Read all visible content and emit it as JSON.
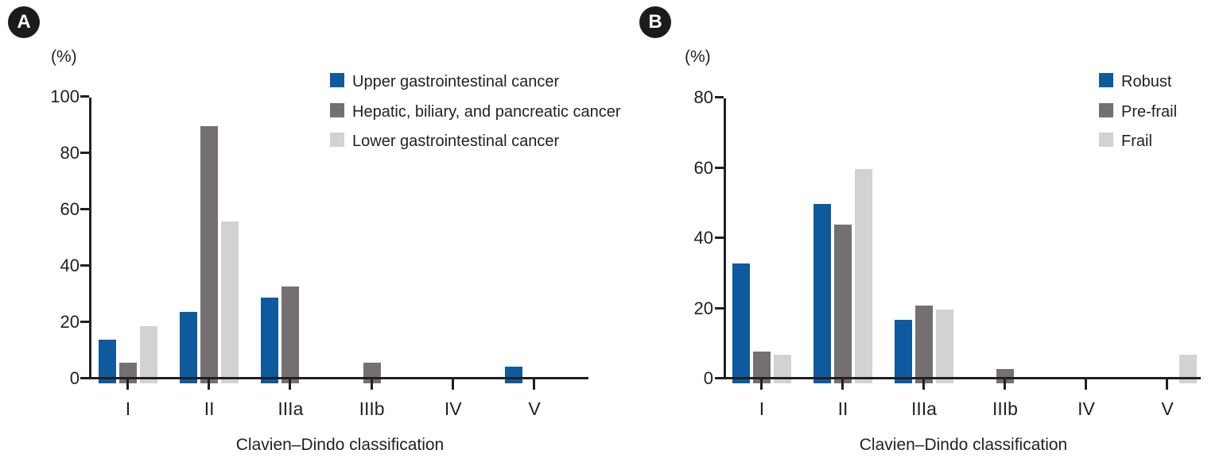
{
  "figure": {
    "panels": [
      {
        "badge_label": "A",
        "unit_label": "(%)",
        "chart_index": 0
      },
      {
        "badge_label": "B",
        "unit_label": "(%)",
        "chart_index": 1
      }
    ]
  },
  "colors": {
    "series_blue": "#0e5a9e",
    "series_dark_gray": "#747071",
    "series_light_gray": "#d2d2d3",
    "axis_text": "#231f20",
    "badge_background": "#1b1b1b",
    "badge_text": "#ffffff"
  },
  "chart_data": [
    {
      "type": "bar",
      "panel": "A",
      "title": "",
      "categories": [
        "I",
        "II",
        "IIIa",
        "IIIb",
        "IV",
        "V"
      ],
      "series": [
        {
          "name": "Upper gastrointestinal cancer",
          "color": "#0e5a9e",
          "values": [
            14,
            24,
            29,
            0,
            0,
            4.5
          ]
        },
        {
          "name": "Hepatic, biliary, and pancreatic cancer",
          "color": "#747071",
          "values": [
            6,
            90,
            33,
            6,
            0,
            0
          ]
        },
        {
          "name": "Lower gastrointestinal cancer",
          "color": "#d2d2d3",
          "values": [
            19,
            56,
            0,
            0,
            0,
            0
          ]
        }
      ],
      "xlabel": "Clavien–Dindo classification",
      "ylabel": "(%)",
      "ylim": [
        0,
        100
      ],
      "yticks": [
        0,
        20,
        40,
        60,
        80,
        100
      ],
      "legend_position": "top-right",
      "grid": false
    },
    {
      "type": "bar",
      "panel": "B",
      "title": "",
      "categories": [
        "I",
        "II",
        "IIIa",
        "IIIb",
        "IV",
        "V"
      ],
      "series": [
        {
          "name": "Robust",
          "color": "#0e5a9e",
          "values": [
            33,
            50,
            17,
            0,
            0,
            0
          ]
        },
        {
          "name": "Pre-frail",
          "color": "#747071",
          "values": [
            8,
            44,
            21,
            3,
            0,
            0
          ]
        },
        {
          "name": "Frail",
          "color": "#d2d2d3",
          "values": [
            7,
            60,
            20,
            0,
            0,
            7
          ]
        }
      ],
      "xlabel": "Clavien–Dindo classification",
      "ylabel": "(%)",
      "ylim": [
        0,
        80
      ],
      "yticks": [
        0,
        20,
        40,
        60,
        80
      ],
      "legend_position": "top-right",
      "grid": false
    }
  ]
}
